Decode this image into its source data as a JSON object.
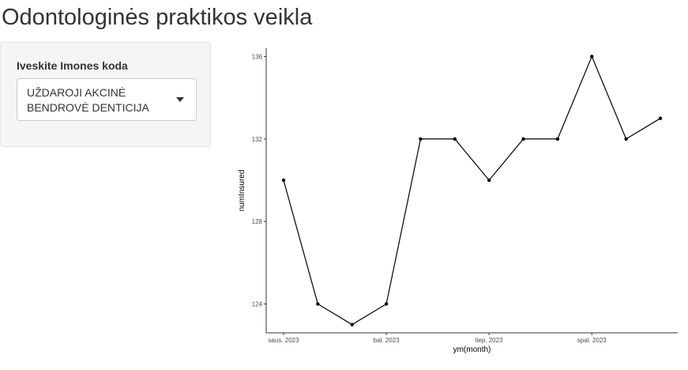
{
  "app": {
    "title": "Odontologinės praktikos veikla"
  },
  "sidebar": {
    "input_label": "Iveskite Imones koda",
    "select_value": "UŽDAROJI AKCINĖ BENDROVĖ DENTICIJA"
  },
  "chart_data": {
    "type": "line",
    "xlabel": "ym(month)",
    "ylabel": "numInsured",
    "x": [
      "2023-01",
      "2023-02",
      "2023-03",
      "2023-04",
      "2023-05",
      "2023-06",
      "2023-07",
      "2023-08",
      "2023-09",
      "2023-10",
      "2023-11",
      "2023-12"
    ],
    "x_tick_labels": [
      "saus. 2023",
      "bal. 2023",
      "liep. 2023",
      "spal. 2023"
    ],
    "x_tick_positions": [
      "2023-01",
      "2023-04",
      "2023-07",
      "2023-10"
    ],
    "y": [
      130,
      124,
      123,
      124,
      132,
      132,
      130,
      132,
      132,
      136,
      132,
      133
    ],
    "y_ticks": [
      124,
      128,
      132,
      136
    ],
    "ylim": [
      122.6,
      136.4
    ],
    "grid": false,
    "line_color": "#000000",
    "point_color": "#000000"
  }
}
